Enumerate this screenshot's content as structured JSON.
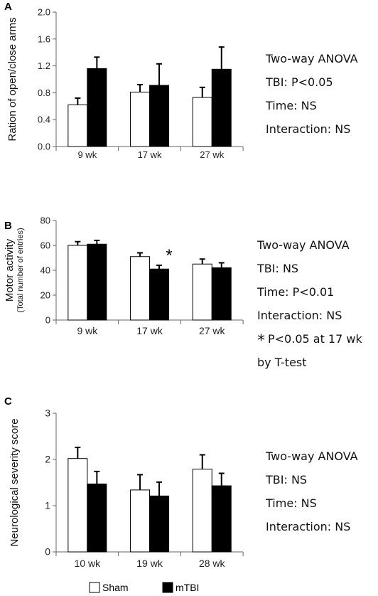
{
  "legend": [
    {
      "name": "Sham",
      "color": "#ffffff"
    },
    {
      "name": "mTBI",
      "color": "#000000"
    }
  ],
  "panels": {
    "A": {
      "stats": [
        "Two-way ANOVA",
        "TBI: P<0.05",
        "Time:  NS",
        "Interaction: NS"
      ]
    },
    "B": {
      "stats": [
        "Two-way ANOVA",
        "TBI: NS",
        "Time:  P<0.01",
        "Interaction: NS",
        "P<0.05 at 17 wk",
        "by T-test"
      ],
      "star": "*"
    },
    "C": {
      "stats": [
        "Two-way ANOVA",
        "TBI:  NS",
        "Time:  NS",
        "Interaction: NS"
      ]
    }
  },
  "chart_data": [
    {
      "panel": "A",
      "type": "bar",
      "ylabel": "Ration of open/close arms",
      "categories": [
        "9 wk",
        "17 wk",
        "27 wk"
      ],
      "yticks": [
        "0.0",
        "0.4",
        "0.8",
        "1.2",
        "1.6",
        "2.0"
      ],
      "ylim": [
        0,
        2.0
      ],
      "series": [
        {
          "name": "Sham",
          "values": [
            0.62,
            0.81,
            0.73
          ],
          "errors": [
            0.1,
            0.11,
            0.15
          ]
        },
        {
          "name": "mTBI",
          "values": [
            1.16,
            0.91,
            1.15
          ],
          "errors": [
            0.17,
            0.32,
            0.33
          ]
        }
      ],
      "annotations": []
    },
    {
      "panel": "B",
      "type": "bar",
      "ylabel": "Motor activity",
      "ylabel2": "(Total number of entries)",
      "categories": [
        "9 wk",
        "17 wk",
        "27 wk"
      ],
      "yticks": [
        "0",
        "20",
        "40",
        "60",
        "80"
      ],
      "ylim": [
        0,
        80
      ],
      "series": [
        {
          "name": "Sham",
          "values": [
            60,
            51,
            45
          ],
          "errors": [
            3,
            3,
            4
          ]
        },
        {
          "name": "mTBI",
          "values": [
            61,
            41,
            42
          ],
          "errors": [
            3,
            3,
            4
          ]
        }
      ],
      "annotations": [
        {
          "category": "17 wk",
          "text": "*"
        }
      ]
    },
    {
      "panel": "C",
      "type": "bar",
      "ylabel": "Neurological severity score",
      "categories": [
        "10 wk",
        "19 wk",
        "28 wk"
      ],
      "yticks": [
        "0",
        "1",
        "2",
        "3"
      ],
      "ylim": [
        0,
        3
      ],
      "series": [
        {
          "name": "Sham",
          "values": [
            2.02,
            1.34,
            1.79
          ],
          "errors": [
            0.24,
            0.33,
            0.31
          ]
        },
        {
          "name": "mTBI",
          "values": [
            1.47,
            1.21,
            1.43
          ],
          "errors": [
            0.27,
            0.3,
            0.27
          ]
        }
      ],
      "annotations": []
    }
  ]
}
